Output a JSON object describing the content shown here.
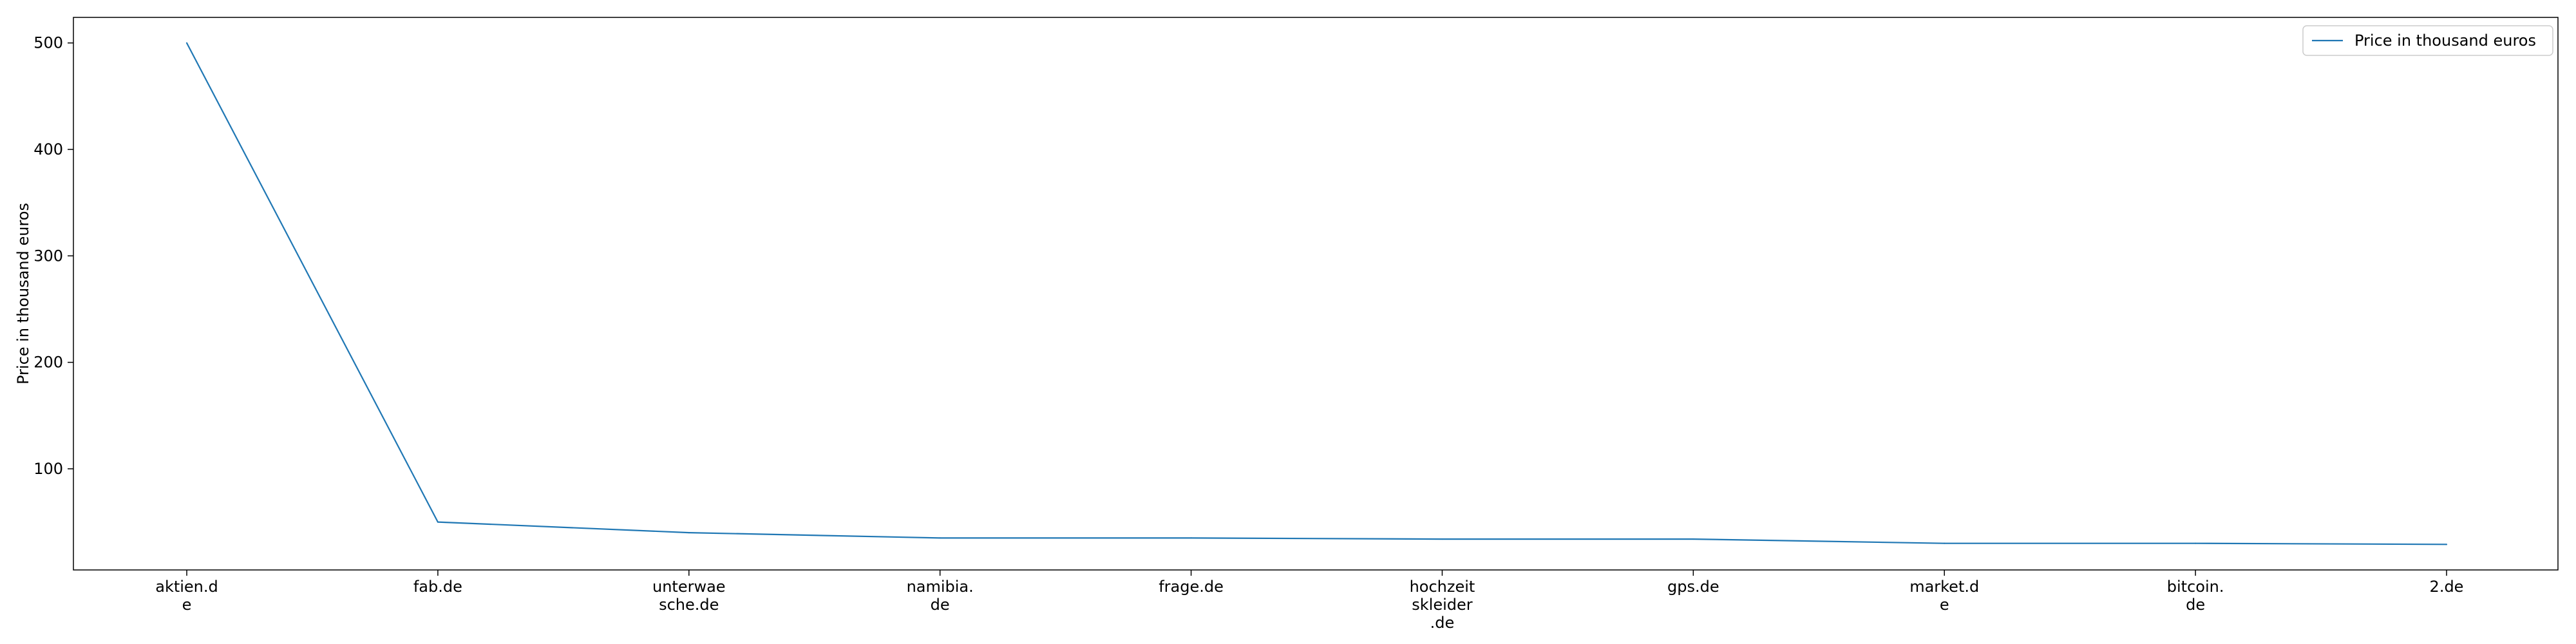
{
  "chart_data": {
    "type": "line",
    "title": "",
    "xlabel": "",
    "ylabel": "Price in thousand euros",
    "categories": [
      "aktien.d\ne",
      "fab.de",
      "unterwae\nsche.de",
      "namibia.\nde",
      "frage.de",
      "hochzeit\nskleider\n.de",
      "gps.de",
      "market.d\ne",
      "bitcoin.\nde",
      "2.de"
    ],
    "series": [
      {
        "name": "Price in thousand euros",
        "color": "#1f77b4",
        "values": [
          500,
          50,
          40,
          35,
          35,
          34,
          34,
          30,
          30,
          29
        ]
      }
    ],
    "ylim": [
      5,
      524
    ],
    "yticks": [
      100,
      200,
      300,
      400,
      500
    ],
    "legend": {
      "placement": "top-right"
    },
    "grid": false
  }
}
